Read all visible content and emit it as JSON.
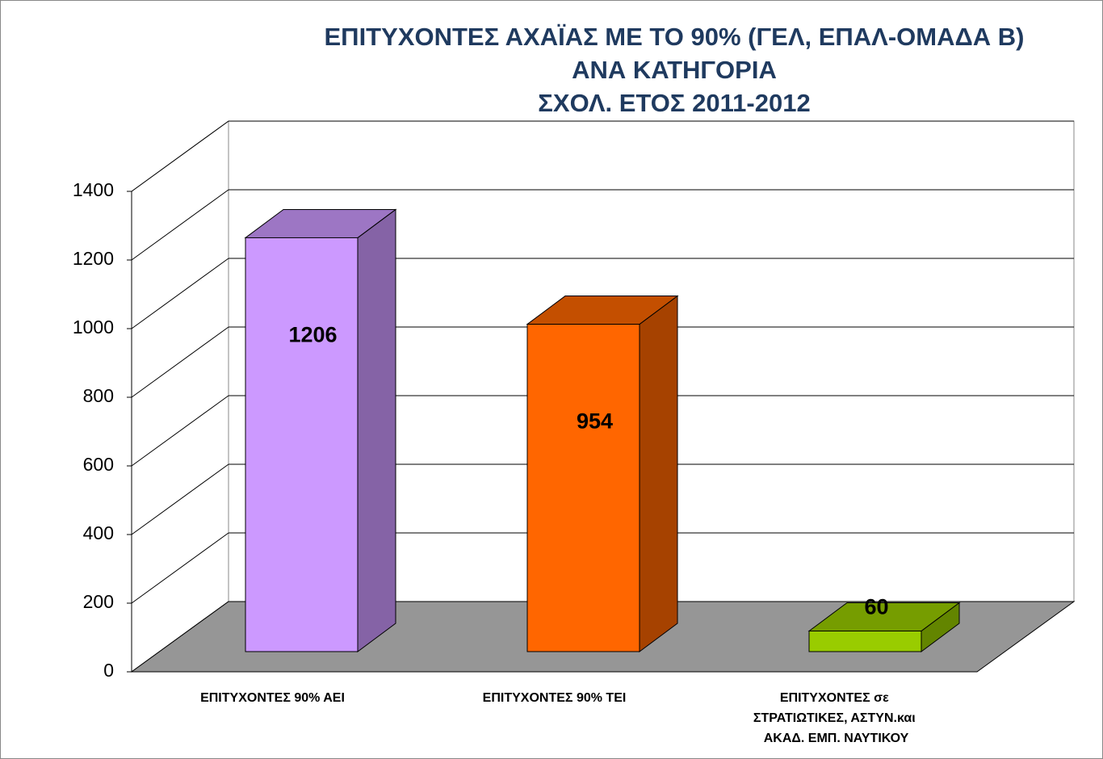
{
  "chart_data": {
    "type": "bar3d",
    "title": [
      "ΕΠΙΤΥΧΟΝΤΕΣ ΑΧΑΪΑΣ  ΜΕ ΤΟ 90% (ΓΕΛ, ΕΠΑΛ-ΟΜΑΔΑ Β)",
      "ΑΝΑ ΚΑΤΗΓΟΡΙΑ",
      "ΣΧΟΛ. ΕΤΟΣ 2011-2012"
    ],
    "categories": [
      "ΕΠΙΤΥΧΟΝΤΕΣ 90% ΑΕΙ",
      "ΕΠΙΤΥΧΟΝΤΕΣ 90% ΤΕΙ",
      "ΕΠΙΤΥΧΟΝΤΕΣ σε ΣΤΡΑΤΙΩΤΙΚΕΣ, ΑΣΤΥΝ.και ΑΚΑΔ. ΕΜΠ. ΝΑΥΤΙΚΟΥ"
    ],
    "values": [
      1206,
      954,
      60
    ],
    "colors": [
      "#cc99ff",
      "#ff6600",
      "#99cc00"
    ],
    "ylim": [
      0,
      1400
    ],
    "yticks": [
      0,
      200,
      400,
      600,
      800,
      1000,
      1200,
      1400
    ],
    "grid": true
  }
}
